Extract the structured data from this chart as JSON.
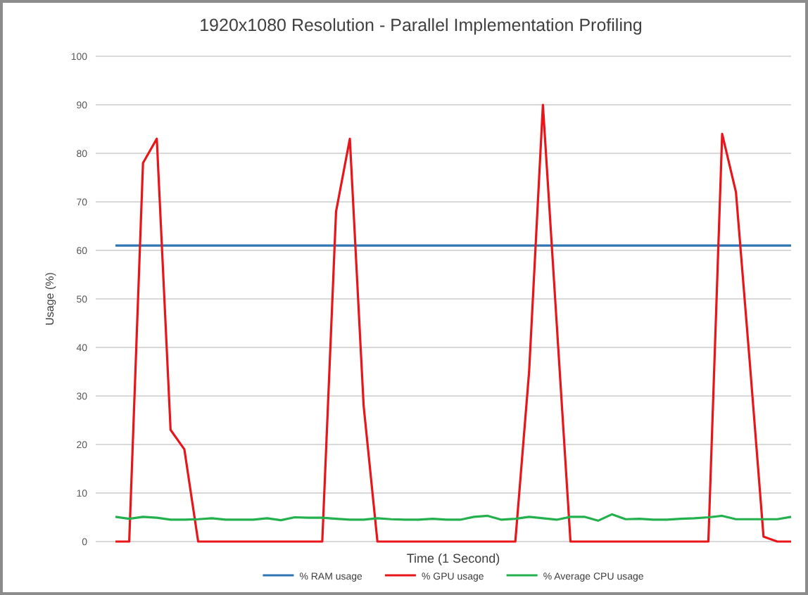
{
  "chart_data": {
    "type": "line",
    "title": "1920x1080 Resolution - Parallel Implementation Profiling",
    "xlabel": "Time (1 Second)",
    "ylabel": "Usage (%)",
    "categories": [
      null,
      null,
      null,
      null,
      null,
      null,
      null,
      null,
      null,
      null,
      null,
      null,
      null,
      null,
      null,
      null,
      null,
      null,
      null,
      null,
      null,
      null,
      null,
      null,
      null,
      null,
      null,
      null,
      null,
      null,
      null,
      null,
      null,
      null,
      null,
      null,
      null,
      null,
      null,
      null,
      null,
      null,
      null,
      null,
      null,
      null,
      null,
      null,
      null,
      null
    ],
    "series": [
      {
        "name": "% RAM usage",
        "color": "#2e75b6",
        "values": [
          61,
          61,
          61,
          61,
          61,
          61,
          61,
          61,
          61,
          61,
          61,
          61,
          61,
          61,
          61,
          61,
          61,
          61,
          61,
          61,
          61,
          61,
          61,
          61,
          61,
          61,
          61,
          61,
          61,
          61,
          61,
          61,
          61,
          61,
          61,
          61,
          61,
          61,
          61,
          61,
          61,
          61,
          61,
          61,
          61,
          61,
          61,
          61,
          61,
          61
        ]
      },
      {
        "name": "% GPU usage",
        "color": "#e8161b",
        "values": [
          0,
          0,
          78,
          83,
          23,
          19,
          0,
          0,
          0,
          0,
          0,
          0,
          0,
          0,
          0,
          0,
          68,
          83,
          28,
          0,
          0,
          0,
          0,
          0,
          0,
          0,
          0,
          0,
          0,
          0,
          35,
          90,
          45,
          0,
          0,
          0,
          0,
          0,
          0,
          0,
          0,
          0,
          0,
          0,
          84,
          72,
          37,
          1,
          0,
          0
        ]
      },
      {
        "name": "% Average CPU usage",
        "color": "#22b14c",
        "values": [
          5.1,
          4.7,
          5.1,
          4.9,
          4.5,
          4.5,
          4.6,
          4.8,
          4.5,
          4.5,
          4.5,
          4.8,
          4.4,
          5.0,
          4.9,
          4.9,
          4.7,
          4.5,
          4.5,
          4.8,
          4.6,
          4.5,
          4.5,
          4.7,
          4.5,
          4.5,
          5.1,
          5.3,
          4.5,
          4.7,
          5.1,
          4.8,
          4.5,
          5.1,
          5.1,
          4.3,
          5.6,
          4.6,
          4.7,
          4.5,
          4.5,
          4.7,
          4.8,
          5.0,
          5.3,
          4.6,
          4.6,
          4.6,
          4.6,
          5.1
        ]
      }
    ],
    "ylim": [
      0,
      100
    ],
    "yticks": [
      0,
      10,
      20,
      30,
      40,
      50,
      60,
      70,
      80,
      90,
      100
    ],
    "grid": "y",
    "legend": "bottom",
    "marker": "none",
    "line_style": "solid"
  }
}
